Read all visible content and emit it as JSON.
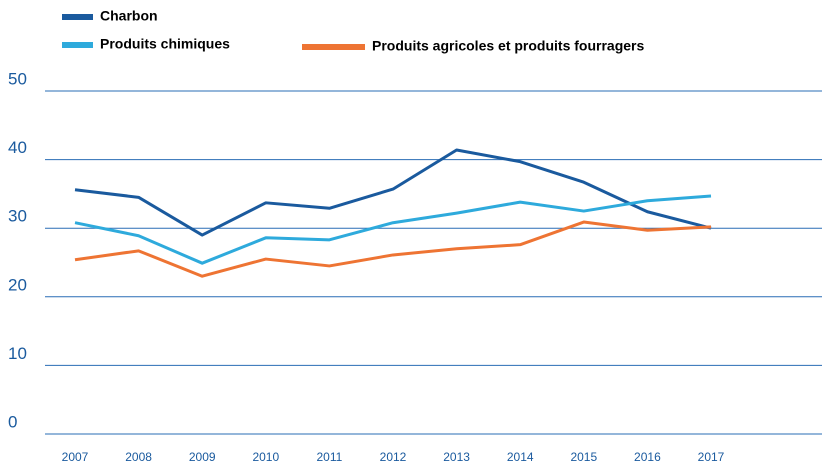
{
  "chart_data": {
    "type": "line",
    "x": [
      "2007",
      "2008",
      "2009",
      "2010",
      "2011",
      "2012",
      "2013",
      "2014",
      "2015",
      "2016",
      "2017"
    ],
    "series": [
      {
        "name": "Charbon",
        "color": "#1a5a9e",
        "values": [
          35.6,
          34.5,
          29.0,
          33.7,
          32.9,
          35.7,
          41.4,
          39.7,
          36.7,
          32.4,
          30.0
        ]
      },
      {
        "name": "Produits chimiques",
        "color": "#2eaadc",
        "values": [
          30.8,
          28.9,
          24.9,
          28.6,
          28.3,
          30.8,
          32.2,
          33.8,
          32.5,
          34.0,
          34.7
        ]
      },
      {
        "name": "Produits agricoles et produits fourragers",
        "color": "#ee7433",
        "values": [
          25.4,
          26.7,
          23.0,
          25.5,
          24.5,
          26.1,
          27.0,
          27.6,
          30.9,
          29.7,
          30.2
        ]
      }
    ],
    "ylim": [
      0,
      50
    ],
    "yticks": [
      0,
      10,
      20,
      30,
      40,
      50
    ],
    "grid": true
  }
}
